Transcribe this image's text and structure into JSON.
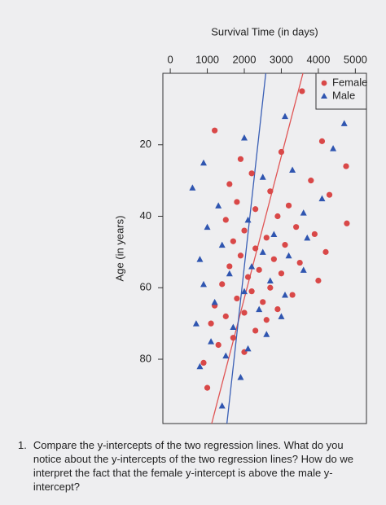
{
  "chart_data": {
    "type": "scatter",
    "ylabel": "Survival Time (in days)",
    "xlabel": "Age (in years)",
    "ylim": [
      -200,
      5300
    ],
    "yticks": [
      0,
      1000,
      2000,
      3000,
      4000,
      5000
    ],
    "xlim": [
      0,
      98
    ],
    "xticks": [
      20,
      40,
      60,
      80
    ],
    "legend": "top-right",
    "series": [
      {
        "name": "Female",
        "color": "#d94848",
        "marker": "circle",
        "x": [
          5,
          16,
          19,
          22,
          24,
          26,
          28,
          30,
          31,
          33,
          34,
          36,
          37,
          38,
          40,
          41,
          42,
          43,
          44,
          45,
          46,
          47,
          48,
          49,
          50,
          51,
          52,
          53,
          54,
          55,
          56,
          57,
          58,
          59,
          60,
          61,
          62,
          63,
          64,
          65,
          66,
          67,
          68,
          69,
          70,
          72,
          74,
          76,
          78,
          81,
          88
        ],
        "values": [
          3560,
          1200,
          4100,
          3000,
          1900,
          4750,
          2200,
          3800,
          1600,
          2700,
          4300,
          1800,
          3200,
          2300,
          2900,
          1500,
          4770,
          3400,
          2000,
          3900,
          2600,
          1700,
          3100,
          2300,
          4200,
          1900,
          2800,
          3500,
          1600,
          2400,
          3000,
          2100,
          4000,
          1400,
          2700,
          2200,
          3300,
          1800,
          2500,
          1200,
          2900,
          2000,
          1500,
          2600,
          1100,
          2300,
          1700,
          1300,
          2000,
          900,
          1000
        ]
      },
      {
        "name": "Male",
        "color": "#2f55b0",
        "marker": "triangle",
        "x": [
          12,
          14,
          18,
          21,
          25,
          27,
          29,
          32,
          35,
          37,
          39,
          41,
          43,
          45,
          46,
          48,
          50,
          51,
          52,
          54,
          55,
          56,
          58,
          59,
          61,
          62,
          64,
          66,
          68,
          70,
          71,
          73,
          75,
          77,
          79,
          82,
          85,
          93
        ],
        "values": [
          3100,
          4700,
          2000,
          4400,
          900,
          3300,
          2500,
          600,
          4100,
          1300,
          3600,
          2100,
          1000,
          2800,
          3700,
          1400,
          2500,
          3200,
          800,
          2200,
          3600,
          1600,
          2700,
          900,
          2000,
          3100,
          1200,
          2400,
          3000,
          700,
          1700,
          2600,
          1100,
          2100,
          1500,
          800,
          1900,
          1400
        ]
      }
    ],
    "fit_lines": [
      {
        "color": "#e05555",
        "x": [
          0,
          98
        ],
        "values": [
          3584,
          1119
        ]
      },
      {
        "color": "#3a5fb5",
        "x": [
          0,
          98
        ],
        "values": [
          2580,
          1530
        ]
      }
    ]
  },
  "question": {
    "number": "1.",
    "text": "Compare the y-intercepts of the two regression lines. What do you notice about the y-intercepts of the two regression lines? How do we interpret the fact that the female y-intercept is above the male y-intercept?"
  }
}
